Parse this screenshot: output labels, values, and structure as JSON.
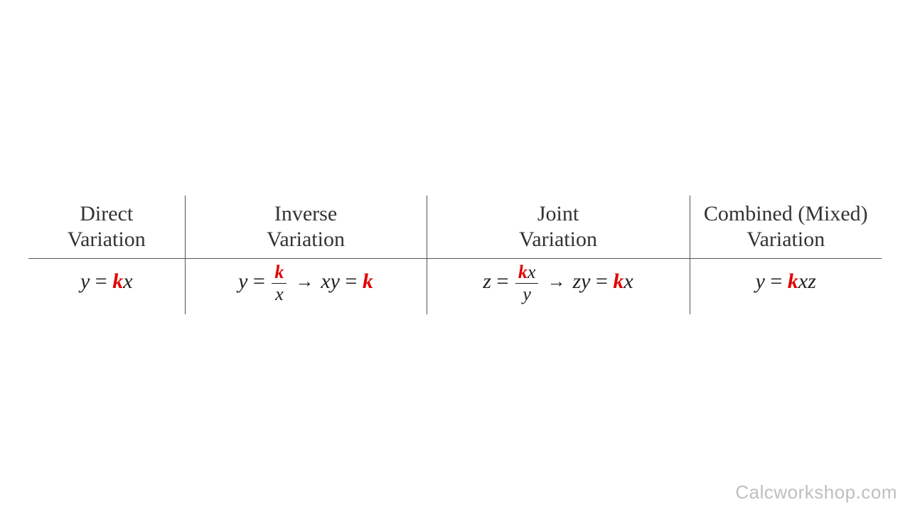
{
  "table": {
    "headers": [
      {
        "line1": "Direct",
        "line2": "Variation"
      },
      {
        "line1": "Inverse",
        "line2": "Variation"
      },
      {
        "line1": "Joint",
        "line2": "Variation"
      },
      {
        "line1": "Combined (Mixed)",
        "line2": "Variation"
      }
    ],
    "highlight_color": "#e20000",
    "text_color": "#222222",
    "border_color": "#555555",
    "font_family": "Georgia",
    "header_fontsize": 30,
    "cell_fontsize": 30,
    "fraction_fontsize": 26,
    "cells": {
      "direct": {
        "lhs": "y",
        "op": "=",
        "k": "k",
        "rhs": "x"
      },
      "inverse": {
        "form1": {
          "lhs": "y",
          "op": "=",
          "k": "k",
          "denom": "x"
        },
        "arrow": "→",
        "form2": {
          "lhs": "xy",
          "op": "=",
          "k": "k"
        }
      },
      "joint": {
        "form1": {
          "lhs": "z",
          "op": "=",
          "num_k": "k",
          "num_rest": "x",
          "denom": "y"
        },
        "arrow": "→",
        "form2": {
          "lhs": "zy",
          "op": "=",
          "k": "k",
          "rhs": "x"
        }
      },
      "combined": {
        "lhs": "y",
        "op": "=",
        "k": "k",
        "rhs": "xz"
      }
    }
  },
  "footer": "Calcworkshop.com"
}
